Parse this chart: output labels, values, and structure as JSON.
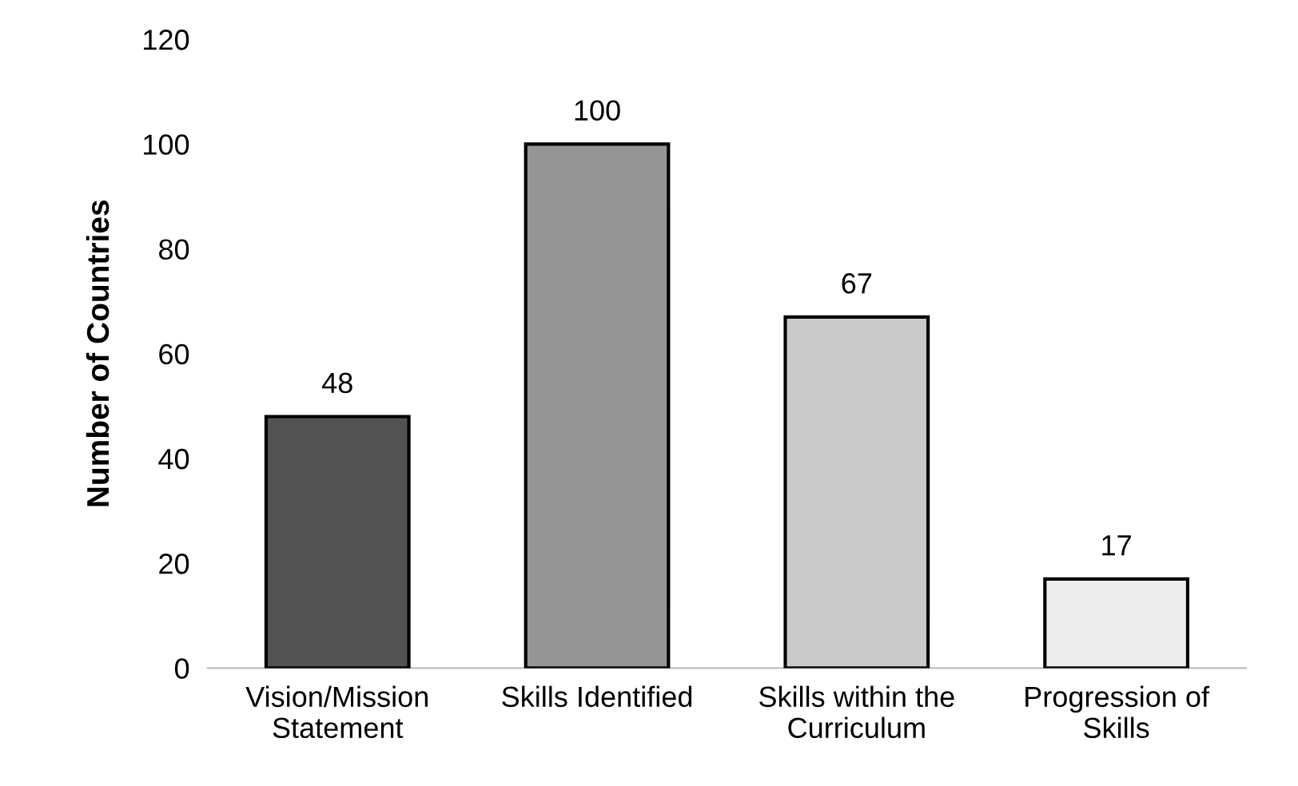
{
  "chart_data": {
    "type": "bar",
    "ylabel": "Number of Countries",
    "categories": [
      "Vision/Mission\nStatement",
      "Skills Identified",
      "Skills within the\nCurriculum",
      "Progression of\nSkills"
    ],
    "values": [
      48,
      100,
      67,
      17
    ],
    "colors": [
      "#525252",
      "#959595",
      "#c9c9c9",
      "#ededed"
    ],
    "ylim": [
      0,
      120
    ],
    "yticks": [
      0,
      20,
      40,
      60,
      80,
      100,
      120
    ],
    "data_labels": true,
    "grid": false,
    "legend": false
  }
}
